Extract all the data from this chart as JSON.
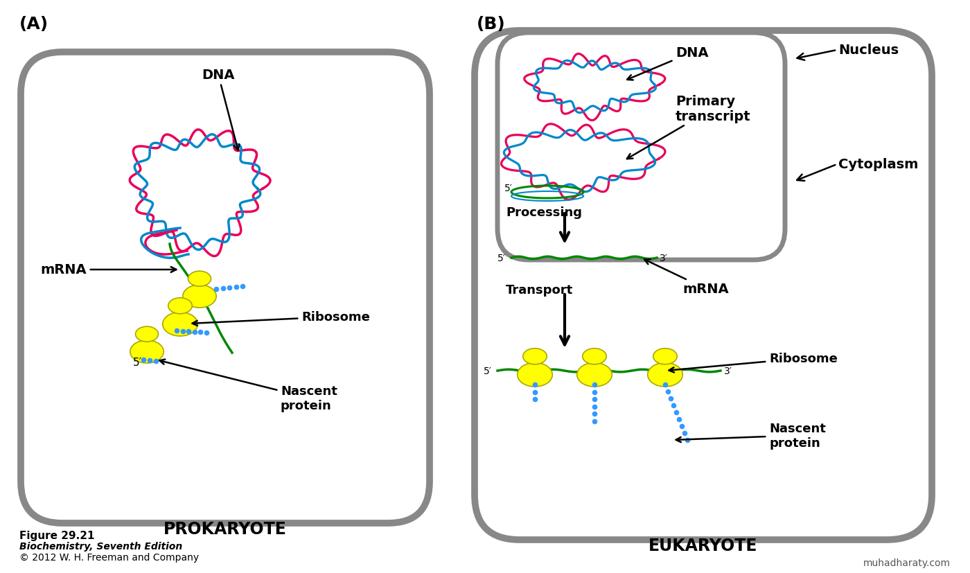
{
  "bg_color": "#ffffff",
  "cell_border_color": "#888888",
  "dna_color1": "#e8005a",
  "dna_color2": "#0088cc",
  "mrna_color": "#008800",
  "ribosome_color": "#ffff00",
  "ribosome_edge": "#aaa800",
  "nascent_color": "#3399ff",
  "title_a": "(A)",
  "title_b": "(B)",
  "label_prokaryote": "PROKARYOTE",
  "label_eukaryote": "EUKARYOTE",
  "label_dna": "DNA",
  "label_mrna": "mRNA",
  "label_ribosome": "Ribosome",
  "label_nascent": "Nascent\nprotein",
  "label_nucleus": "Nucleus",
  "label_cytoplasm": "Cytoplasm",
  "label_primary": "Primary\ntranscript",
  "label_processing": "Processing",
  "label_transport": "Transport",
  "label_5prime": "5′",
  "label_3prime": "3′",
  "fig_label": "Figure 29.21",
  "fig_edition": "Biochemistry, Seventh Edition",
  "fig_copyright": "© 2012 W. H. Freeman and Company",
  "watermark": "muhadharaty.com"
}
